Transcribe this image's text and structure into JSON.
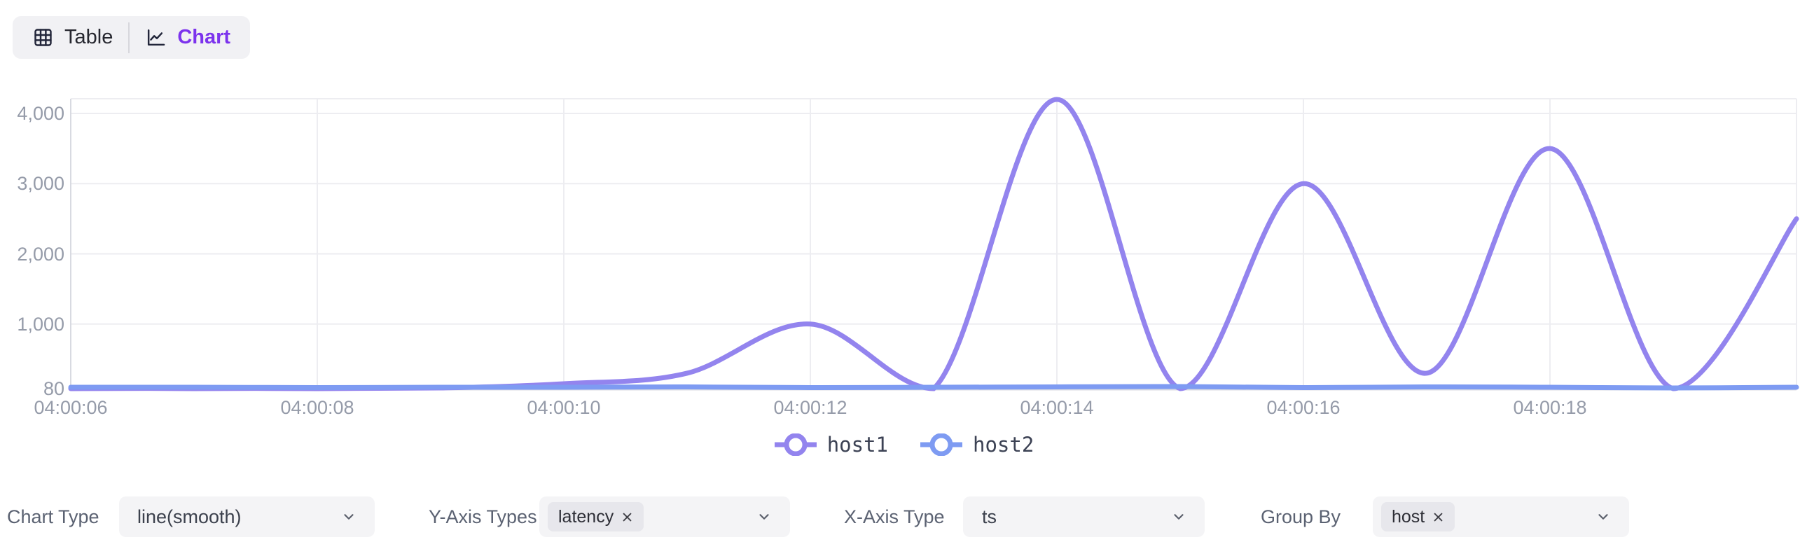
{
  "view_toggle": {
    "table_label": "Table",
    "chart_label": "Chart",
    "active": "Chart"
  },
  "chart_data": {
    "type": "line",
    "smooth": true,
    "title": "",
    "xlabel": "",
    "ylabel": "",
    "grid": true,
    "legend_position": "bottom-center",
    "x_tick_labels": [
      "04:00:06",
      "04:00:08",
      "04:00:10",
      "04:00:12",
      "04:00:14",
      "04:00:16",
      "04:00:18"
    ],
    "x_tick_seconds": [
      6,
      8,
      10,
      12,
      14,
      16,
      18
    ],
    "x_range_seconds": [
      6,
      20
    ],
    "y_tick_labels": [
      "80",
      "1,000",
      "2,000",
      "3,000",
      "4,000"
    ],
    "y_ticks": [
      80,
      1000,
      2000,
      3000,
      4000
    ],
    "ylim": [
      80,
      4210
    ],
    "x_seconds": [
      6,
      7,
      8,
      9,
      10,
      11,
      12,
      13,
      14,
      15,
      16,
      17,
      18,
      19,
      20
    ],
    "series": [
      {
        "name": "host1",
        "color": "#9384ee",
        "values": [
          80,
          80,
          80,
          90,
          150,
          300,
          1000,
          80,
          4200,
          80,
          3000,
          300,
          3500,
          80,
          2500
        ]
      },
      {
        "name": "host2",
        "color": "#7e9bf2",
        "values": [
          100,
          100,
          95,
          100,
          100,
          105,
          95,
          100,
          105,
          110,
          95,
          105,
          100,
          90,
          100
        ]
      }
    ],
    "colors": {
      "gridline": "#ededf1",
      "axis_line": "#d8dae1",
      "tick_label": "#959ba9"
    }
  },
  "controls": {
    "chart_type": {
      "label": "Chart Type",
      "value": "line(smooth)"
    },
    "y_axis_types": {
      "label": "Y-Axis Types",
      "tags": [
        "latency"
      ]
    },
    "x_axis_type": {
      "label": "X-Axis Type",
      "value": "ts"
    },
    "group_by": {
      "label": "Group By",
      "tags": [
        "host"
      ]
    }
  }
}
